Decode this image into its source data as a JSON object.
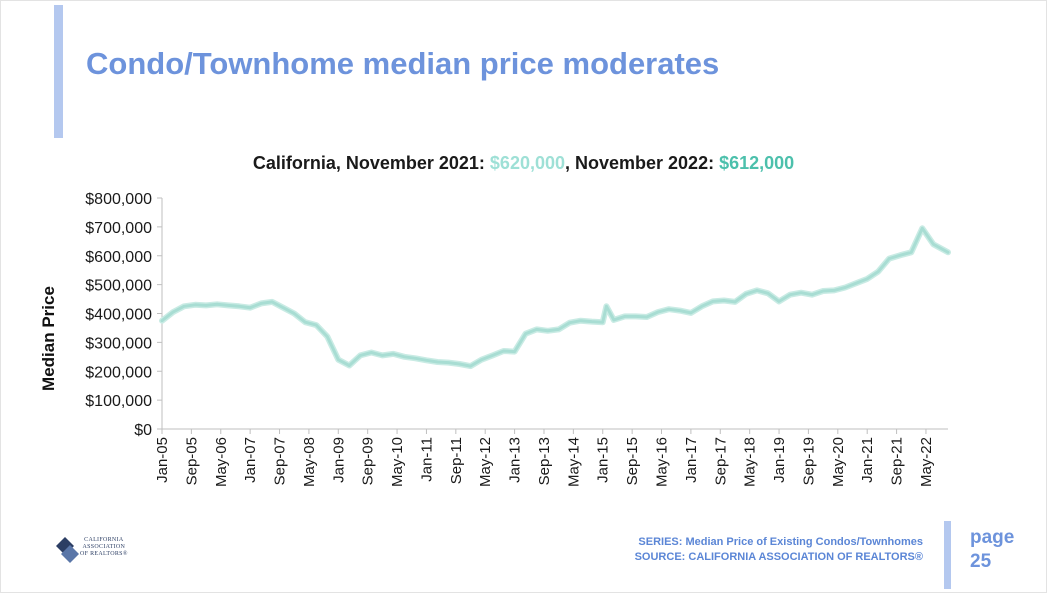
{
  "slide": {
    "title": "Condo/Townhome median price moderates",
    "chart_title_prefix": "California, November 2021: ",
    "chart_title_value_2021": "$620,000",
    "chart_title_mid": ", November 2022: ",
    "chart_title_value_2022": "$612,000",
    "series_note": "SERIES: Median Price of Existing Condos/Townhomes",
    "source_note": "SOURCE: CALIFORNIA ASSOCIATION OF REALTORS®",
    "page_label": "page",
    "page_number": "25",
    "logo_text": [
      "CALIFORNIA",
      "ASSOCIATION",
      "OF REALTORS®"
    ]
  },
  "colors": {
    "accent_blue": "#6d93dc",
    "accent_bar": "#b4c8ef",
    "line_color": "#a8ddd3",
    "value_2021": "#9ee0d6",
    "value_2022": "#4cc0ac"
  },
  "chart_data": {
    "type": "line",
    "title": "California, November 2021: $620,000, November 2022: $612,000",
    "xlabel": "",
    "ylabel": "Median Price",
    "ylim": [
      0,
      800000
    ],
    "yticks": [
      0,
      100000,
      200000,
      300000,
      400000,
      500000,
      600000,
      700000,
      800000
    ],
    "ytick_labels": [
      "$0",
      "$100,000",
      "$200,000",
      "$300,000",
      "$400,000",
      "$500,000",
      "$600,000",
      "$700,000",
      "$800,000"
    ],
    "xtick_labels": [
      "Jan-05",
      "Sep-05",
      "May-06",
      "Jan-07",
      "Sep-07",
      "May-08",
      "Jan-09",
      "Sep-09",
      "May-10",
      "Jan-11",
      "Sep-11",
      "May-12",
      "Jan-13",
      "Sep-13",
      "May-14",
      "Jan-15",
      "Sep-15",
      "May-16",
      "Jan-17",
      "Sep-17",
      "May-18",
      "Jan-19",
      "Sep-19",
      "May-20",
      "Jan-21",
      "Sep-21",
      "May-22"
    ],
    "grid": false,
    "legend": "none",
    "series": [
      {
        "x": [
          "Jan-05",
          "Apr-05",
          "Jul-05",
          "Oct-05",
          "Jan-06",
          "Apr-06",
          "Jul-06",
          "Oct-06",
          "Jan-07",
          "Apr-07",
          "Jul-07",
          "Oct-07",
          "Jan-08",
          "Apr-08",
          "Jul-08",
          "Oct-08",
          "Jan-09",
          "Apr-09",
          "Jul-09",
          "Oct-09",
          "Jan-10",
          "Apr-10",
          "Jul-10",
          "Oct-10",
          "Jan-11",
          "Apr-11",
          "Jul-11",
          "Oct-11",
          "Jan-12",
          "Apr-12",
          "Jul-12",
          "Oct-12",
          "Jan-13",
          "Apr-13",
          "Jul-13",
          "Oct-13",
          "Jan-14",
          "Apr-14",
          "Jul-14",
          "Oct-14",
          "Jan-15",
          "Feb-15",
          "Apr-15",
          "Jul-15",
          "Oct-15",
          "Jan-16",
          "Apr-16",
          "Jul-16",
          "Oct-16",
          "Jan-17",
          "Apr-17",
          "Jul-17",
          "Oct-17",
          "Jan-18",
          "Apr-18",
          "Jul-18",
          "Oct-18",
          "Jan-19",
          "Apr-19",
          "Jul-19",
          "Oct-19",
          "Jan-20",
          "Apr-20",
          "Jul-20",
          "Oct-20",
          "Jan-21",
          "Apr-21",
          "Jul-21",
          "Oct-21",
          "Jan-22",
          "Apr-22",
          "Jul-22",
          "Nov-22"
        ],
        "values": [
          375000,
          405000,
          425000,
          430000,
          428000,
          432000,
          428000,
          425000,
          420000,
          435000,
          440000,
          420000,
          400000,
          370000,
          360000,
          320000,
          240000,
          220000,
          255000,
          265000,
          255000,
          260000,
          250000,
          245000,
          238000,
          232000,
          230000,
          225000,
          218000,
          240000,
          255000,
          270000,
          268000,
          330000,
          345000,
          340000,
          345000,
          368000,
          375000,
          372000,
          370000,
          425000,
          378000,
          390000,
          390000,
          388000,
          405000,
          415000,
          410000,
          402000,
          425000,
          442000,
          445000,
          440000,
          468000,
          480000,
          470000,
          442000,
          465000,
          472000,
          465000,
          478000,
          480000,
          490000,
          505000,
          520000,
          545000,
          590000,
          602000,
          612000,
          695000,
          640000,
          612000
        ]
      }
    ]
  }
}
